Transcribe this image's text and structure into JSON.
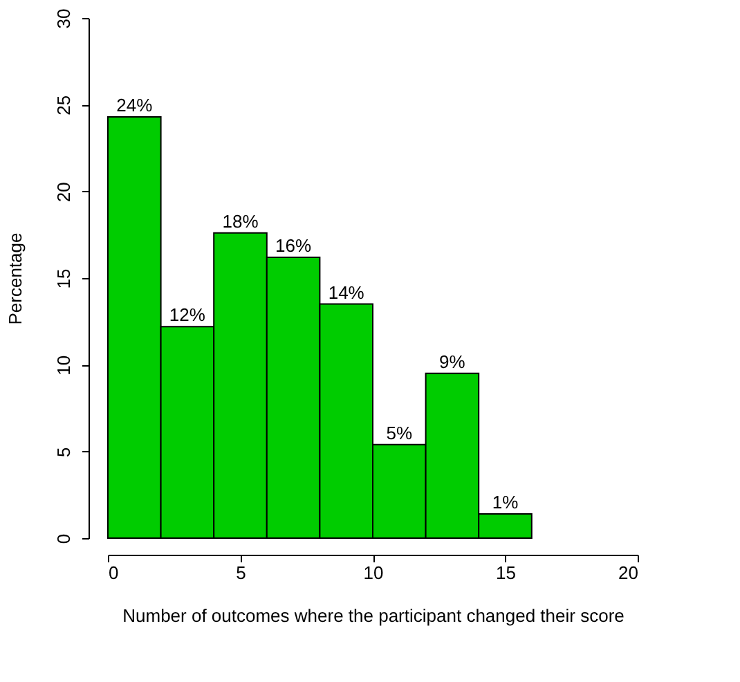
{
  "chart_data": {
    "type": "histogram",
    "xlabel": "Number of outcomes where the participant changed their score",
    "ylabel": "Percentage",
    "bins": [
      0,
      2,
      4,
      6,
      8,
      10,
      12,
      14,
      16
    ],
    "values": [
      24.3,
      12.2,
      17.6,
      16.2,
      13.5,
      5.4,
      9.5,
      1.4
    ],
    "value_labels": [
      "24%",
      "12%",
      "18%",
      "16%",
      "14%",
      "5%",
      "9%",
      "1%"
    ],
    "color": "#00cc00",
    "xlim": [
      0,
      20
    ],
    "xticks": [
      0,
      5,
      10,
      15,
      20
    ],
    "ylim": [
      0,
      30
    ],
    "yticks": [
      0,
      5,
      10,
      15,
      20,
      25,
      30
    ],
    "grid": false
  }
}
